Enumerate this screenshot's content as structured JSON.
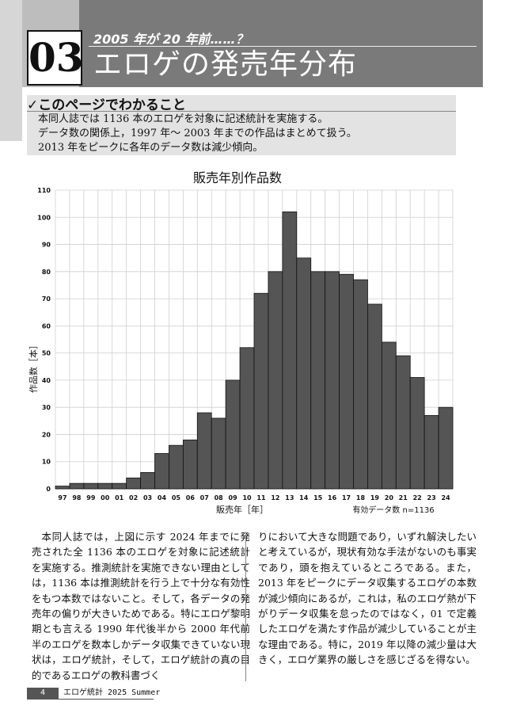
{
  "header": {
    "chapter_number": "03",
    "subtitle": "2005 年が 20 年前……？",
    "title": "エロゲの発売年分布"
  },
  "summary": {
    "heading": "✓このページでわかること",
    "lines": [
      "本同人誌では 1136 本のエロゲを対象に記述統計を実施する。",
      "データ数の関係上，1997 年～ 2003 年までの作品はまとめて扱う。",
      "2013 年をピークに各年のデータ数は減少傾向。"
    ]
  },
  "chart_data": {
    "type": "bar",
    "title": "販売年別作品数",
    "xlabel": "販売年［年］",
    "ylabel": "作品数［本］",
    "note": "有効データ数 n=1136",
    "ylim": [
      0,
      110
    ],
    "yticks": [
      0,
      10,
      20,
      30,
      40,
      50,
      60,
      70,
      80,
      90,
      100,
      110
    ],
    "grid": true,
    "bar_color": "#555555",
    "categories": [
      "97",
      "98",
      "99",
      "00",
      "01",
      "02",
      "03",
      "04",
      "05",
      "06",
      "07",
      "08",
      "09",
      "10",
      "11",
      "12",
      "13",
      "14",
      "15",
      "16",
      "17",
      "18",
      "19",
      "20",
      "21",
      "22",
      "23",
      "24"
    ],
    "values": [
      1,
      2,
      2,
      2,
      2,
      4,
      6,
      13,
      16,
      18,
      28,
      26,
      40,
      52,
      72,
      80,
      102,
      85,
      80,
      80,
      79,
      77,
      68,
      54,
      49,
      41,
      27,
      30
    ]
  },
  "body": {
    "left": "本同人誌では，上図に示す 2024 年までに発売された全 1136 本のエロゲを対象に記述統計を実施する。推測統計を実施できない理由としては，1136 本は推測統計を行う上で十分な有効性をもつ本数ではないこと。そして，各データの発売年の偏りが大きいためである。特にエロゲ黎明期とも言える 1990 年代後半から 2000 年代前半のエロゲを数本しかデータ収集できていない現状は，エロゲ統計，そして，エロゲ統計の真の目的であるエロゲの教科書づく",
    "right": "りにおいて大きな問題であり，いずれ解決したいと考えているが，現状有効な手法がないのも事実であり，頭を抱えているところである。また，2013 年をピークにデータ収集するエロゲの本数が減少傾向にあるが，これは，私のエロゲ熱が下がりデータ収集を怠ったのではなく，01 で定義したエロゲを満たす作品が減少していることが主な理由である。特に，2019 年以降の減少量は大きく，エロゲ業界の厳しさを感じざるを得ない。"
  },
  "footer": {
    "page": "4",
    "text": "エロゲ統計 2025 Summer"
  }
}
